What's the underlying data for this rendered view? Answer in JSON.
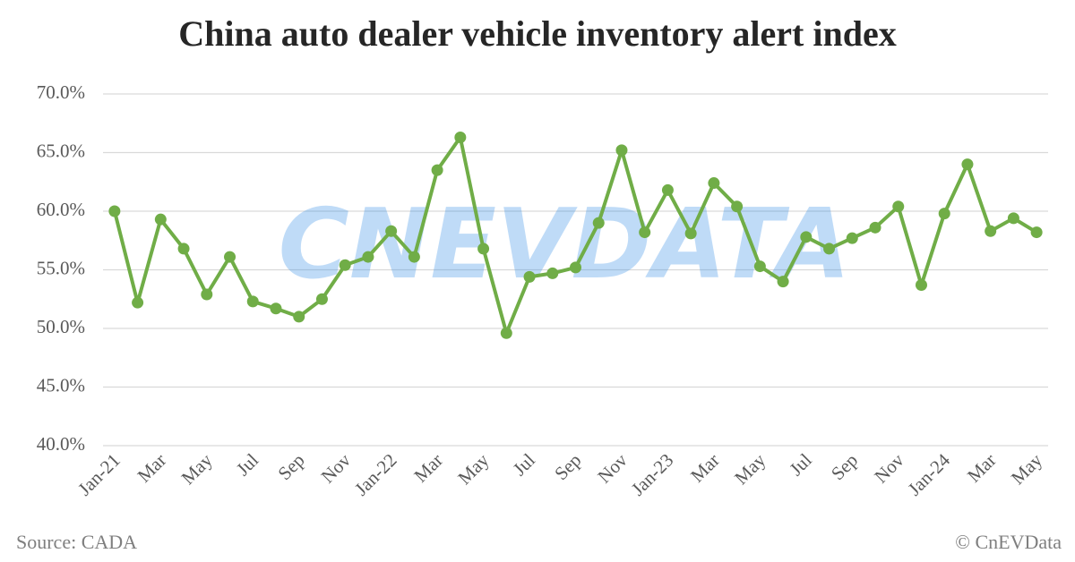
{
  "chart_data": {
    "type": "line",
    "title": "China auto dealer vehicle inventory alert index",
    "source": "Source: CADA",
    "credit": "© CnEVData",
    "watermark": "CNEVDATA",
    "categories": [
      "Jan-21",
      null,
      "Mar",
      null,
      "May",
      null,
      "Jul",
      null,
      "Sep",
      null,
      "Nov",
      null,
      "Jan-22",
      null,
      "Mar",
      null,
      "May",
      null,
      "Jul",
      null,
      "Sep",
      null,
      "Nov",
      null,
      "Jan-23",
      null,
      "Mar",
      null,
      "May",
      null,
      "Jul",
      null,
      "Sep",
      null,
      "Nov",
      null,
      "Jan-24",
      null,
      "Mar",
      null,
      "May"
    ],
    "values": [
      60.0,
      52.2,
      59.3,
      56.8,
      52.9,
      56.1,
      52.3,
      51.7,
      51.0,
      52.5,
      55.4,
      56.1,
      58.3,
      56.1,
      63.5,
      66.3,
      56.8,
      49.6,
      54.4,
      54.7,
      55.2,
      59.0,
      65.2,
      58.2,
      61.8,
      58.1,
      62.4,
      60.4,
      55.3,
      54.0,
      57.8,
      56.8,
      57.7,
      58.6,
      60.4,
      53.7,
      59.8,
      64.0,
      58.3,
      59.4,
      58.2
    ],
    "color": "#70ad47",
    "ylim": [
      40,
      70
    ],
    "yticks": [
      {
        "value": 40,
        "label": "40.0%"
      },
      {
        "value": 45,
        "label": "45.0%"
      },
      {
        "value": 50,
        "label": "50.0%"
      },
      {
        "value": 55,
        "label": "55.0%"
      },
      {
        "value": 60,
        "label": "60.0%"
      },
      {
        "value": 65,
        "label": "65.0%"
      },
      {
        "value": 70,
        "label": "70.0%"
      }
    ],
    "grid": true
  }
}
